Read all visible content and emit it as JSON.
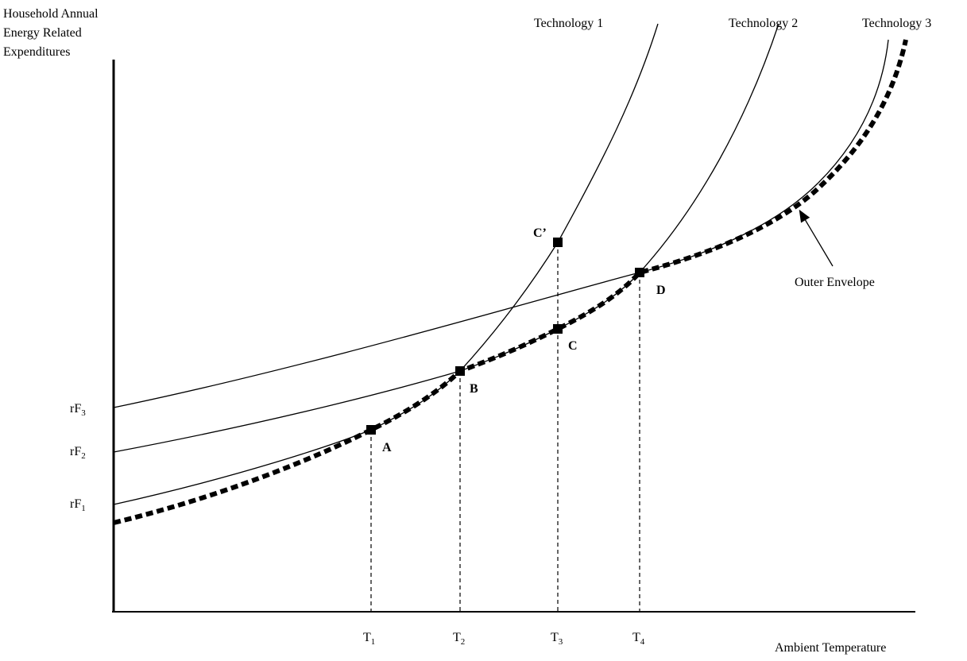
{
  "axes": {
    "y_label": [
      "Household Annual",
      "Energy Related",
      "Expenditures"
    ],
    "x_label": "Ambient Temperature"
  },
  "x_ticks": [
    {
      "base": "T",
      "sub": "1"
    },
    {
      "base": "T",
      "sub": "2"
    },
    {
      "base": "T",
      "sub": "3"
    },
    {
      "base": "T",
      "sub": "4"
    }
  ],
  "y_ticks": [
    {
      "base": "rF",
      "sub": "3"
    },
    {
      "base": "rF",
      "sub": "2"
    },
    {
      "base": "rF",
      "sub": "1"
    }
  ],
  "curves": [
    "Technology 1",
    "Technology 2",
    "Technology 3"
  ],
  "points": [
    "A",
    "B",
    "C",
    "C’",
    "D"
  ],
  "envelope": "Outer Envelope"
}
